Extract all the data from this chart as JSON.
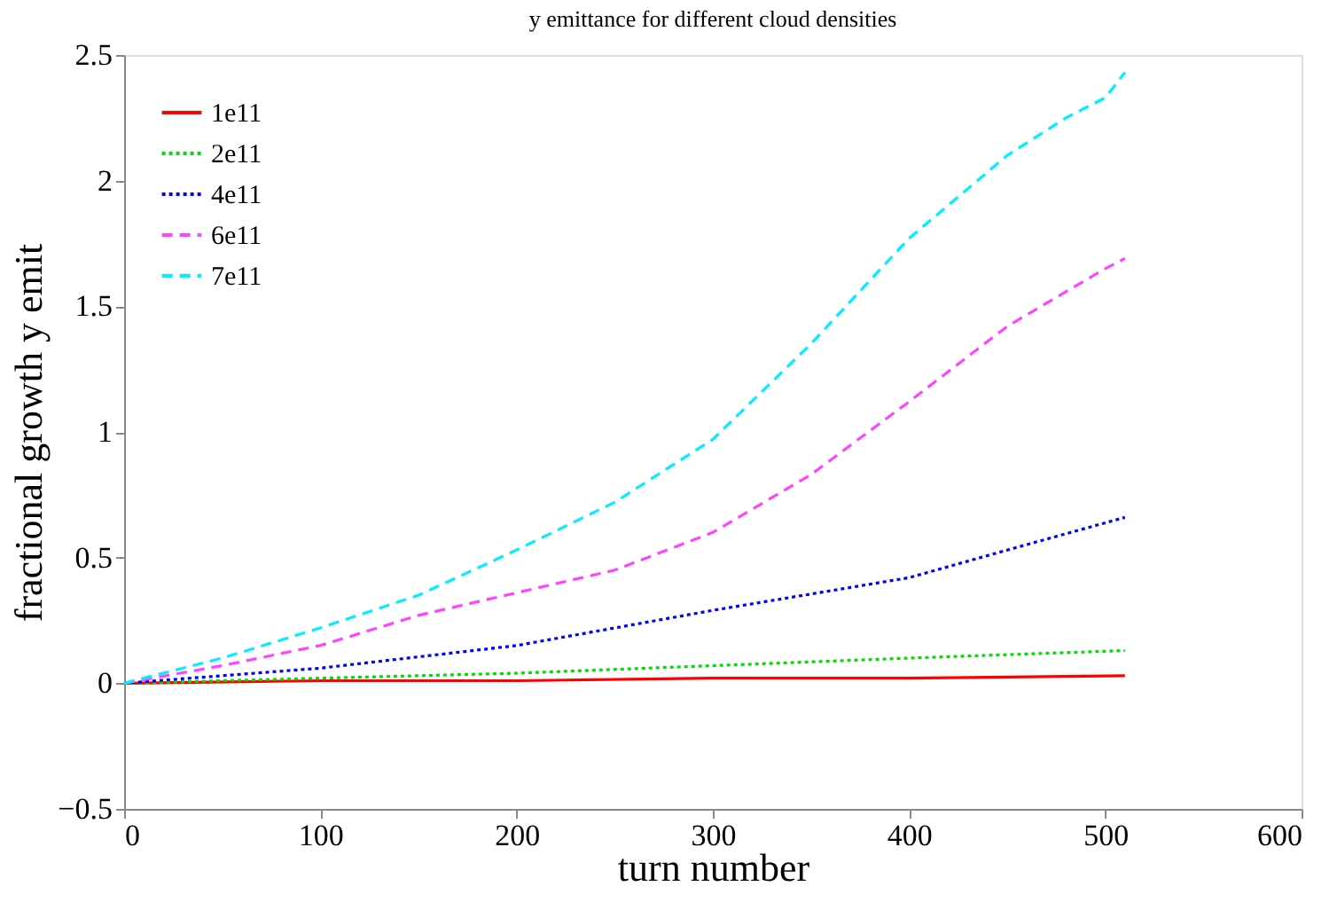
{
  "chart_data": {
    "type": "line",
    "title": "y emittance for different cloud densities",
    "xlabel": "turn number",
    "ylabel": "fractional growth y emit",
    "xlim": [
      0,
      600
    ],
    "ylim": [
      -0.5,
      2.5
    ],
    "xticks": [
      0,
      100,
      200,
      300,
      400,
      500,
      600
    ],
    "yticks": [
      -0.5,
      0,
      0.5,
      1,
      1.5,
      2,
      2.5
    ],
    "grid": false,
    "legend": "top left",
    "marker": "none",
    "series": [
      {
        "name": "1e11",
        "color": "#ff0000",
        "line_style": "solid",
        "x": [
          0,
          100,
          200,
          300,
          400,
          510
        ],
        "values": [
          0,
          0.01,
          0.01,
          0.02,
          0.02,
          0.03
        ]
      },
      {
        "name": "2e11",
        "color": "#00dd00",
        "line_style": "dotted",
        "x": [
          0,
          100,
          200,
          300,
          400,
          510
        ],
        "values": [
          0,
          0.02,
          0.04,
          0.07,
          0.1,
          0.13
        ]
      },
      {
        "name": "4e11",
        "color": "#0000ff",
        "line_style": "dotted",
        "x": [
          0,
          100,
          200,
          300,
          400,
          450,
          510
        ],
        "values": [
          0,
          0.06,
          0.15,
          0.29,
          0.42,
          0.53,
          0.66
        ]
      },
      {
        "name": "6e11",
        "color": "#ff44ff",
        "line_style": "dashed",
        "x": [
          0,
          50,
          100,
          150,
          200,
          250,
          300,
          350,
          400,
          450,
          500,
          510
        ],
        "values": [
          0,
          0.07,
          0.15,
          0.27,
          0.36,
          0.45,
          0.6,
          0.83,
          1.12,
          1.42,
          1.65,
          1.69
        ]
      },
      {
        "name": "7e11",
        "color": "#00eeff",
        "line_style": "dashed",
        "x": [
          0,
          50,
          100,
          150,
          200,
          250,
          300,
          350,
          400,
          450,
          480,
          500,
          510
        ],
        "values": [
          0,
          0.1,
          0.22,
          0.35,
          0.53,
          0.72,
          0.97,
          1.35,
          1.77,
          2.1,
          2.25,
          2.33,
          2.43
        ]
      }
    ]
  }
}
